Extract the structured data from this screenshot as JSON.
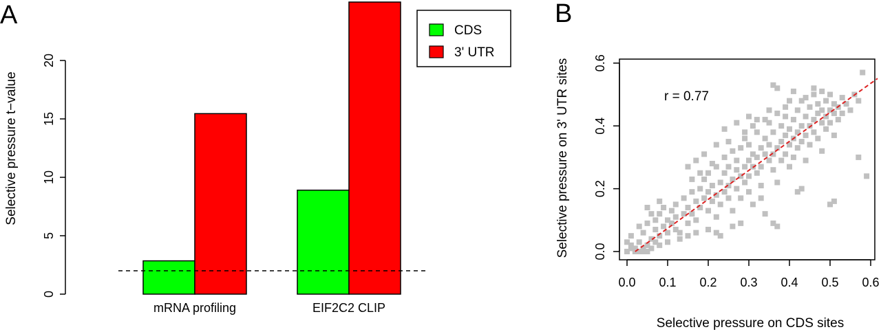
{
  "chart_data": [
    {
      "panel": "A",
      "type": "bar",
      "categories": [
        "mRNA profiling",
        "EIF2C2 CLIP"
      ],
      "series": [
        {
          "name": "CDS",
          "color": "#00ff00",
          "values": [
            2.85,
            8.9
          ]
        },
        {
          "name": "3' UTR",
          "color": "#ff0000",
          "values": [
            15.45,
            25.0
          ]
        }
      ],
      "xlabel": "",
      "ylabel": "Selective pressure t−value",
      "ylim": [
        0,
        25
      ],
      "yticks": [
        0,
        5,
        10,
        15,
        20
      ],
      "reference_line": {
        "y": 2,
        "style": "dashed"
      },
      "legend": {
        "placement": "top-right",
        "entries": [
          "CDS",
          "3' UTR"
        ]
      }
    },
    {
      "panel": "B",
      "type": "scatter",
      "xlabel": "Selective pressure on CDS sites",
      "ylabel": "Selective pressure on 3' UTR sites",
      "xlim": [
        0,
        0.6
      ],
      "ylim": [
        0,
        0.6
      ],
      "xticks": [
        "0.0",
        "0.1",
        "0.2",
        "0.3",
        "0.4",
        "0.5",
        "0.6"
      ],
      "yticks": [
        "0.0",
        "0.2",
        "0.4",
        "0.6"
      ],
      "point_color": "#c0c0c0",
      "annotation": "r = 0.77",
      "fit_line": {
        "color": "#dd2222",
        "style": "dashed",
        "from": [
          0.02,
          0.0
        ],
        "to": [
          0.6,
          0.54
        ]
      },
      "points": [
        [
          0.0,
          0.0
        ],
        [
          0.01,
          0.01
        ],
        [
          0.01,
          0.02
        ],
        [
          0.02,
          0.0
        ],
        [
          0.02,
          0.01
        ],
        [
          0.03,
          0.0
        ],
        [
          0.03,
          0.03
        ],
        [
          0.04,
          0.01
        ],
        [
          0.04,
          0.0
        ],
        [
          0.05,
          0.02
        ],
        [
          0.05,
          0.0
        ],
        [
          0.06,
          0.01
        ],
        [
          0.06,
          0.04
        ],
        [
          0.0,
          0.03
        ],
        [
          0.01,
          0.05
        ],
        [
          0.04,
          0.06
        ],
        [
          0.05,
          0.09
        ],
        [
          0.06,
          0.12
        ],
        [
          0.07,
          0.07
        ],
        [
          0.07,
          0.1
        ],
        [
          0.08,
          0.05
        ],
        [
          0.08,
          0.12
        ],
        [
          0.09,
          0.08
        ],
        [
          0.09,
          0.14
        ],
        [
          0.1,
          0.1
        ],
        [
          0.1,
          0.06
        ],
        [
          0.11,
          0.13
        ],
        [
          0.11,
          0.09
        ],
        [
          0.12,
          0.15
        ],
        [
          0.12,
          0.11
        ],
        [
          0.03,
          0.08
        ],
        [
          0.05,
          0.14
        ],
        [
          0.08,
          0.16
        ],
        [
          0.13,
          0.06
        ],
        [
          0.14,
          0.12
        ],
        [
          0.14,
          0.17
        ],
        [
          0.15,
          0.09
        ],
        [
          0.15,
          0.14
        ],
        [
          0.16,
          0.19
        ],
        [
          0.16,
          0.12
        ],
        [
          0.17,
          0.16
        ],
        [
          0.17,
          0.1
        ],
        [
          0.18,
          0.2
        ],
        [
          0.18,
          0.14
        ],
        [
          0.19,
          0.17
        ],
        [
          0.19,
          0.23
        ],
        [
          0.2,
          0.13
        ],
        [
          0.2,
          0.19
        ],
        [
          0.2,
          0.25
        ],
        [
          0.21,
          0.16
        ],
        [
          0.21,
          0.21
        ],
        [
          0.22,
          0.18
        ],
        [
          0.22,
          0.27
        ],
        [
          0.22,
          0.11
        ],
        [
          0.23,
          0.22
        ],
        [
          0.23,
          0.15
        ],
        [
          0.24,
          0.25
        ],
        [
          0.24,
          0.19
        ],
        [
          0.24,
          0.3
        ],
        [
          0.25,
          0.21
        ],
        [
          0.25,
          0.17
        ],
        [
          0.25,
          0.27
        ],
        [
          0.26,
          0.23
        ],
        [
          0.26,
          0.13
        ],
        [
          0.26,
          0.32
        ],
        [
          0.27,
          0.26
        ],
        [
          0.27,
          0.2
        ],
        [
          0.27,
          0.29
        ],
        [
          0.28,
          0.24
        ],
        [
          0.28,
          0.33
        ],
        [
          0.28,
          0.17
        ],
        [
          0.29,
          0.27
        ],
        [
          0.29,
          0.22
        ],
        [
          0.29,
          0.36
        ],
        [
          0.3,
          0.29
        ],
        [
          0.3,
          0.24
        ],
        [
          0.3,
          0.19
        ],
        [
          0.3,
          0.34
        ],
        [
          0.31,
          0.27
        ],
        [
          0.31,
          0.31
        ],
        [
          0.31,
          0.15
        ],
        [
          0.32,
          0.3
        ],
        [
          0.32,
          0.25
        ],
        [
          0.32,
          0.38
        ],
        [
          0.33,
          0.33
        ],
        [
          0.33,
          0.27
        ],
        [
          0.33,
          0.21
        ],
        [
          0.34,
          0.31
        ],
        [
          0.34,
          0.36
        ],
        [
          0.34,
          0.12
        ],
        [
          0.35,
          0.29
        ],
        [
          0.35,
          0.34
        ],
        [
          0.35,
          0.41
        ],
        [
          0.36,
          0.31
        ],
        [
          0.36,
          0.26
        ],
        [
          0.36,
          0.38
        ],
        [
          0.37,
          0.33
        ],
        [
          0.37,
          0.44
        ],
        [
          0.37,
          0.22
        ],
        [
          0.38,
          0.35
        ],
        [
          0.38,
          0.29
        ],
        [
          0.38,
          0.4
        ],
        [
          0.39,
          0.37
        ],
        [
          0.39,
          0.31
        ],
        [
          0.39,
          0.46
        ],
        [
          0.4,
          0.34
        ],
        [
          0.4,
          0.39
        ],
        [
          0.4,
          0.27
        ],
        [
          0.41,
          0.36
        ],
        [
          0.41,
          0.42
        ],
        [
          0.41,
          0.3
        ],
        [
          0.42,
          0.38
        ],
        [
          0.42,
          0.45
        ],
        [
          0.42,
          0.33
        ],
        [
          0.43,
          0.4
        ],
        [
          0.43,
          0.35
        ],
        [
          0.43,
          0.48
        ],
        [
          0.44,
          0.37
        ],
        [
          0.44,
          0.43
        ],
        [
          0.44,
          0.29
        ],
        [
          0.45,
          0.4
        ],
        [
          0.45,
          0.46
        ],
        [
          0.45,
          0.34
        ],
        [
          0.46,
          0.42
        ],
        [
          0.46,
          0.38
        ],
        [
          0.46,
          0.5
        ],
        [
          0.47,
          0.44
        ],
        [
          0.47,
          0.36
        ],
        [
          0.47,
          0.47
        ],
        [
          0.48,
          0.41
        ],
        [
          0.48,
          0.45
        ],
        [
          0.48,
          0.32
        ],
        [
          0.49,
          0.43
        ],
        [
          0.49,
          0.48
        ],
        [
          0.49,
          0.39
        ],
        [
          0.5,
          0.45
        ],
        [
          0.5,
          0.41
        ],
        [
          0.5,
          0.5
        ],
        [
          0.51,
          0.44
        ],
        [
          0.51,
          0.47
        ],
        [
          0.51,
          0.37
        ],
        [
          0.52,
          0.46
        ],
        [
          0.52,
          0.42
        ],
        [
          0.53,
          0.49
        ],
        [
          0.53,
          0.44
        ],
        [
          0.54,
          0.47
        ],
        [
          0.55,
          0.45
        ],
        [
          0.56,
          0.5
        ],
        [
          0.57,
          0.48
        ],
        [
          0.58,
          0.57
        ],
        [
          0.36,
          0.53
        ],
        [
          0.37,
          0.52
        ],
        [
          0.41,
          0.51
        ],
        [
          0.46,
          0.52
        ],
        [
          0.48,
          0.51
        ],
        [
          0.59,
          0.24
        ],
        [
          0.57,
          0.3
        ],
        [
          0.51,
          0.16
        ],
        [
          0.5,
          0.15
        ],
        [
          0.43,
          0.2
        ],
        [
          0.42,
          0.19
        ],
        [
          0.36,
          0.09
        ],
        [
          0.37,
          0.08
        ],
        [
          0.33,
          0.17
        ],
        [
          0.28,
          0.09
        ],
        [
          0.26,
          0.08
        ],
        [
          0.22,
          0.06
        ],
        [
          0.23,
          0.05
        ],
        [
          0.2,
          0.07
        ],
        [
          0.17,
          0.06
        ],
        [
          0.15,
          0.05
        ],
        [
          0.19,
          0.31
        ],
        [
          0.22,
          0.34
        ],
        [
          0.24,
          0.39
        ],
        [
          0.27,
          0.41
        ],
        [
          0.3,
          0.43
        ],
        [
          0.32,
          0.42
        ],
        [
          0.35,
          0.45
        ],
        [
          0.15,
          0.27
        ],
        [
          0.17,
          0.29
        ],
        [
          0.12,
          0.07
        ],
        [
          0.13,
          0.04
        ],
        [
          0.1,
          0.03
        ],
        [
          0.08,
          0.02
        ],
        [
          0.07,
          0.03
        ],
        [
          0.16,
          0.23
        ],
        [
          0.18,
          0.25
        ],
        [
          0.21,
          0.28
        ],
        [
          0.25,
          0.35
        ],
        [
          0.29,
          0.38
        ],
        [
          0.31,
          0.4
        ],
        [
          0.34,
          0.42
        ],
        [
          0.39,
          0.43
        ],
        [
          0.4,
          0.48
        ],
        [
          0.44,
          0.49
        ]
      ]
    }
  ]
}
